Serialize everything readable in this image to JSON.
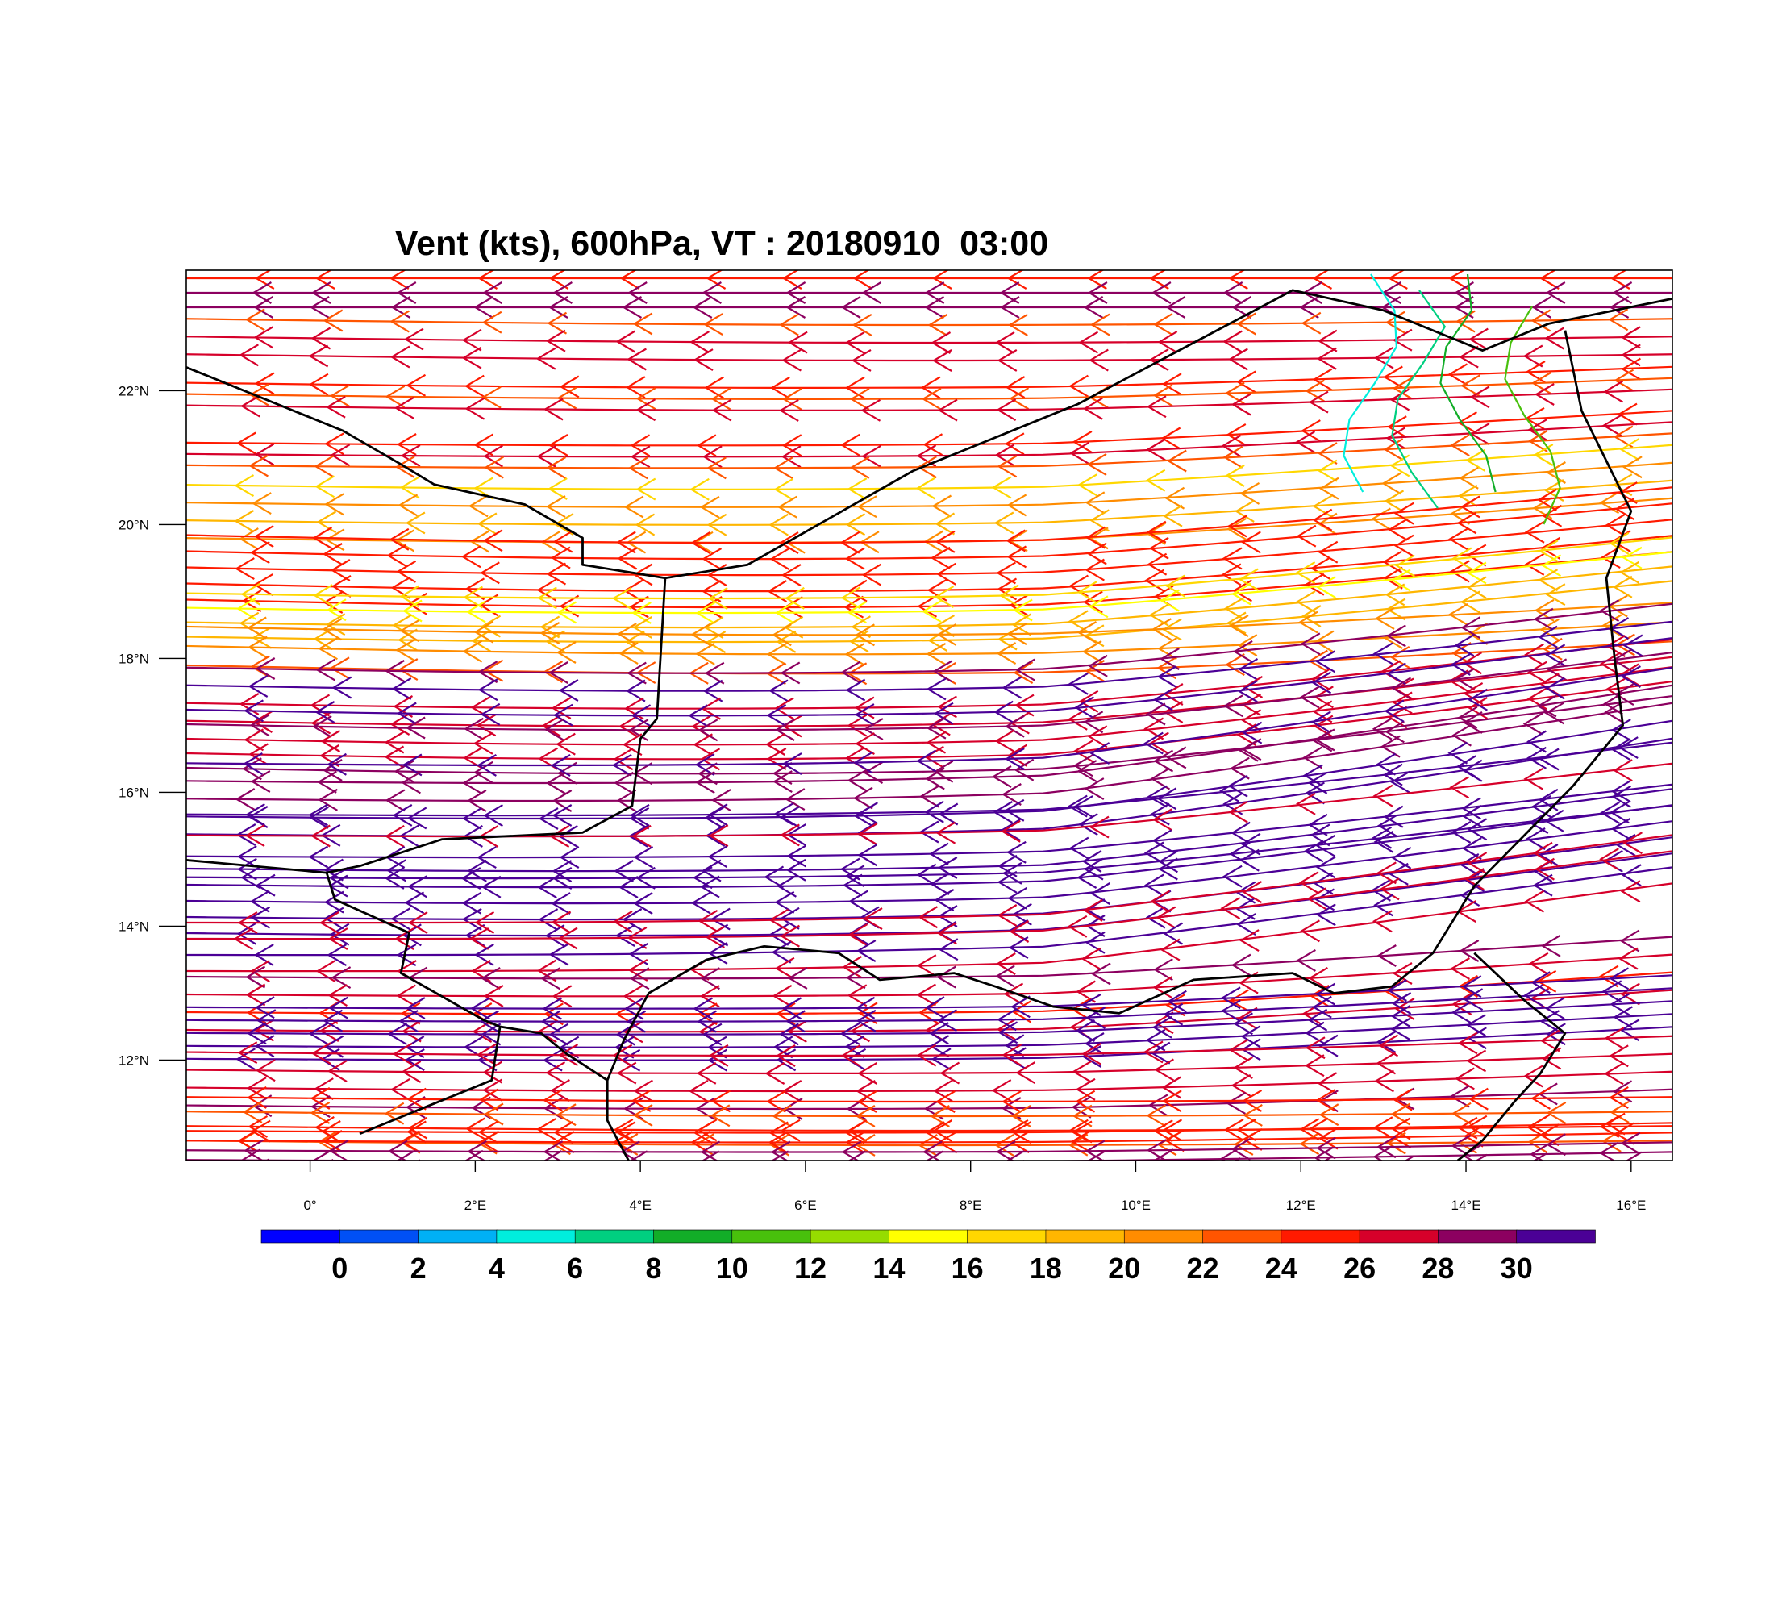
{
  "title": "Vent (kts), 600hPa, VT : 20180910  03:00",
  "map": {
    "lon_range": [
      -1.5,
      16.5
    ],
    "lat_range": [
      10.5,
      23.8
    ],
    "x_ticks": [
      {
        "lon": 0,
        "label": "0°"
      },
      {
        "lon": 2,
        "label": "2°E"
      },
      {
        "lon": 4,
        "label": "4°E"
      },
      {
        "lon": 6,
        "label": "6°E"
      },
      {
        "lon": 8,
        "label": "8°E"
      },
      {
        "lon": 10,
        "label": "10°E"
      },
      {
        "lon": 12,
        "label": "12°E"
      },
      {
        "lon": 14,
        "label": "14°E"
      },
      {
        "lon": 16,
        "label": "16°E"
      }
    ],
    "y_ticks": [
      {
        "lat": 12,
        "label": "12°N"
      },
      {
        "lat": 14,
        "label": "14°N"
      },
      {
        "lat": 16,
        "label": "16°N"
      },
      {
        "lat": 18,
        "label": "18°N"
      },
      {
        "lat": 20,
        "label": "20°N"
      },
      {
        "lat": 22,
        "label": "22°N"
      }
    ],
    "borders": [
      [
        [
          -1.6,
          22.4
        ],
        [
          0.4,
          21.4
        ],
        [
          1.1,
          20.9
        ],
        [
          1.5,
          20.6
        ],
        [
          2.6,
          20.3
        ],
        [
          3.3,
          19.8
        ],
        [
          3.3,
          19.4
        ],
        [
          4.3,
          19.2
        ],
        [
          5.3,
          19.4
        ],
        [
          7.3,
          20.8
        ],
        [
          9.3,
          21.8
        ],
        [
          11.9,
          23.5
        ],
        [
          13.0,
          23.2
        ],
        [
          14.2,
          22.6
        ],
        [
          15.0,
          23.0
        ],
        [
          16.6,
          23.4
        ]
      ],
      [
        [
          4.3,
          19.2
        ],
        [
          4.2,
          17.1
        ],
        [
          4.0,
          16.8
        ],
        [
          3.9,
          15.8
        ],
        [
          3.3,
          15.4
        ],
        [
          1.6,
          15.3
        ],
        [
          0.6,
          14.9
        ],
        [
          0.2,
          14.8
        ],
        [
          -1.6,
          15.0
        ]
      ],
      [
        [
          0.2,
          14.8
        ],
        [
          0.3,
          14.4
        ],
        [
          1.2,
          13.9
        ],
        [
          1.1,
          13.3
        ],
        [
          2.1,
          12.6
        ],
        [
          2.3,
          12.5
        ],
        [
          2.2,
          11.7
        ],
        [
          1.4,
          11.3
        ],
        [
          0.6,
          10.9
        ]
      ],
      [
        [
          2.3,
          12.5
        ],
        [
          2.8,
          12.4
        ],
        [
          3.1,
          12.1
        ],
        [
          3.6,
          11.7
        ],
        [
          3.6,
          11.1
        ],
        [
          3.9,
          10.4
        ]
      ],
      [
        [
          3.6,
          11.7
        ],
        [
          3.8,
          12.3
        ],
        [
          4.1,
          13.0
        ],
        [
          4.8,
          13.5
        ],
        [
          5.5,
          13.7
        ],
        [
          6.4,
          13.6
        ],
        [
          6.9,
          13.2
        ],
        [
          7.8,
          13.3
        ],
        [
          8.3,
          13.1
        ],
        [
          9.0,
          12.8
        ],
        [
          9.8,
          12.7
        ],
        [
          10.7,
          13.2
        ],
        [
          11.9,
          13.3
        ],
        [
          12.4,
          13.0
        ],
        [
          13.1,
          13.1
        ],
        [
          13.6,
          13.6
        ],
        [
          14.1,
          14.6
        ],
        [
          15.3,
          16.1
        ],
        [
          15.9,
          17.0
        ],
        [
          15.8,
          18.0
        ],
        [
          15.7,
          19.2
        ],
        [
          16.0,
          20.2
        ],
        [
          15.4,
          21.7
        ],
        [
          15.2,
          22.9
        ]
      ],
      [
        [
          14.1,
          13.6
        ],
        [
          14.7,
          12.9
        ],
        [
          15.2,
          12.4
        ],
        [
          14.9,
          11.8
        ],
        [
          14.6,
          11.4
        ],
        [
          14.2,
          10.8
        ],
        [
          13.9,
          10.5
        ]
      ]
    ]
  },
  "colorbar": {
    "colors": [
      "#0000ff",
      "#0050f5",
      "#00b0f5",
      "#00eedd",
      "#00cf80",
      "#12ad28",
      "#48c00c",
      "#96dc00",
      "#ffff00",
      "#ffd700",
      "#ffb600",
      "#ff8c00",
      "#ff5500",
      "#ff1a00",
      "#d6002a",
      "#8c0060",
      "#4b0096"
    ],
    "labels": [
      "0",
      "2",
      "4",
      "6",
      "8",
      "10",
      "12",
      "14",
      "16",
      "18",
      "20",
      "22",
      "24",
      "26",
      "28",
      "30"
    ]
  }
}
